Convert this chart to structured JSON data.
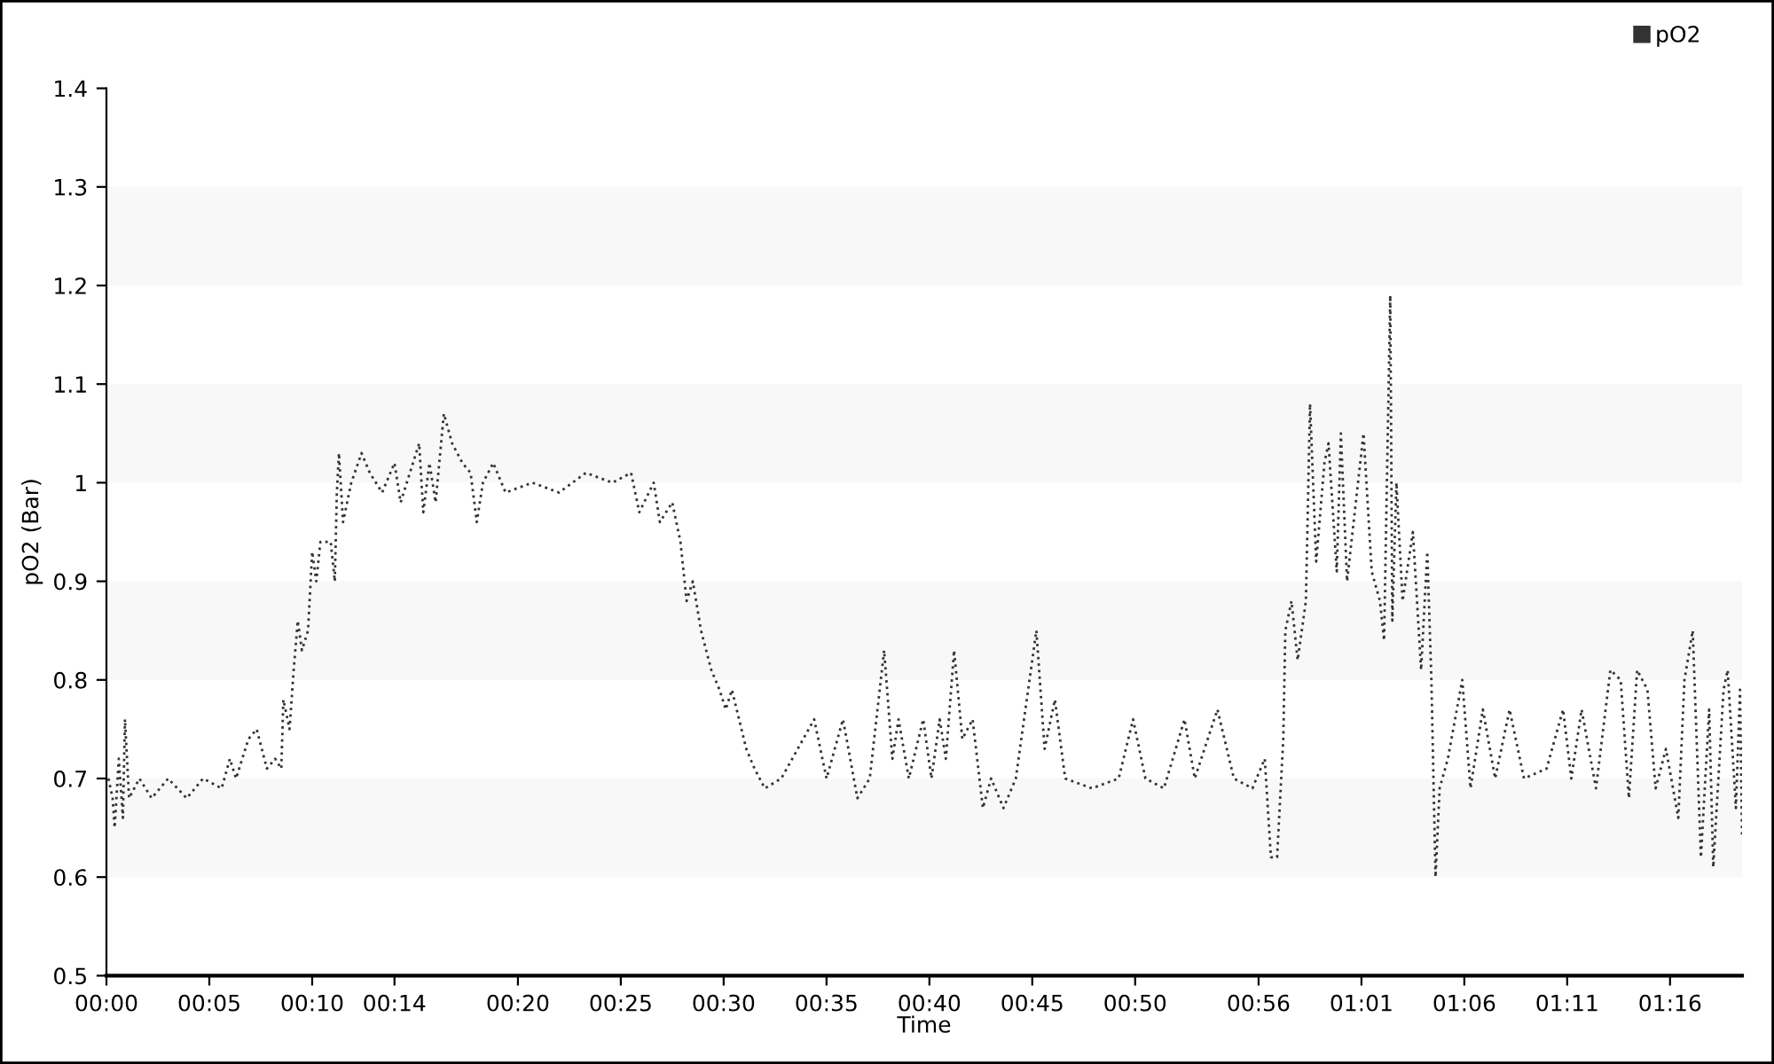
{
  "chart_data": {
    "type": "line",
    "xlabel": "Time",
    "ylabel": "pO2 (Bar)",
    "x": [
      0.1,
      0.3,
      0.4,
      0.6,
      0.8,
      0.9,
      1.1,
      1.6,
      2.2,
      3.0,
      3.9,
      4.7,
      5.6,
      6.0,
      6.3,
      6.9,
      7.3,
      7.8,
      8.2,
      8.5,
      8.6,
      8.9,
      9.1,
      9.3,
      9.5,
      9.8,
      10.0,
      10.2,
      10.4,
      10.9,
      11.1,
      11.2,
      11.3,
      11.5,
      11.9,
      12.4,
      12.8,
      13.4,
      14.0,
      14.3,
      15.2,
      15.4,
      15.7,
      16.0,
      16.4,
      16.8,
      17.3,
      17.7,
      18.0,
      18.3,
      18.8,
      19.4,
      20.7,
      22.0,
      23.3,
      24.6,
      25.5,
      25.9,
      26.6,
      26.9,
      27.5,
      27.9,
      28.2,
      28.5,
      28.9,
      29.4,
      29.8,
      30.1,
      30.4,
      31.1,
      31.5,
      32.0,
      32.8,
      34.4,
      35.0,
      35.8,
      36.5,
      37.1,
      37.8,
      38.2,
      38.5,
      39.0,
      39.7,
      40.1,
      40.5,
      40.8,
      41.2,
      41.6,
      42.1,
      42.6,
      43.0,
      43.6,
      44.2,
      45.2,
      45.6,
      46.1,
      46.6,
      47.9,
      49.2,
      49.9,
      50.5,
      51.4,
      52.4,
      52.9,
      54.0,
      54.8,
      55.7,
      56.3,
      56.6,
      56.9,
      57.2,
      57.3,
      57.6,
      57.9,
      58.3,
      58.5,
      58.8,
      59.2,
      59.4,
      59.8,
      60.0,
      60.3,
      61.1,
      61.5,
      61.9,
      62.1,
      62.4,
      62.5,
      62.7,
      63.0,
      63.5,
      63.9,
      64.2,
      64.4,
      64.6,
      64.8,
      65.2,
      65.9,
      66.3,
      66.9,
      67.5,
      68.2,
      68.9,
      70.0,
      70.8,
      71.2,
      71.7,
      72.4,
      73.1,
      73.6,
      74.0,
      74.4,
      74.9,
      75.3,
      75.8,
      76.4,
      76.7,
      77.1,
      77.5,
      77.9,
      78.1,
      78.6,
      78.8,
      79.2,
      79.4,
      79.5
    ],
    "series": [
      {
        "name": "pO2",
        "color": "#333333",
        "values": [
          0.7,
          0.68,
          0.65,
          0.72,
          0.66,
          0.76,
          0.68,
          0.7,
          0.68,
          0.7,
          0.68,
          0.7,
          0.69,
          0.72,
          0.7,
          0.74,
          0.75,
          0.71,
          0.72,
          0.71,
          0.78,
          0.75,
          0.81,
          0.86,
          0.83,
          0.85,
          0.93,
          0.9,
          0.94,
          0.94,
          0.9,
          0.99,
          1.03,
          0.96,
          1.0,
          1.03,
          1.01,
          0.99,
          1.02,
          0.98,
          1.04,
          0.97,
          1.02,
          0.98,
          1.07,
          1.04,
          1.02,
          1.01,
          0.96,
          1.0,
          1.02,
          0.99,
          1.0,
          0.99,
          1.01,
          1.0,
          1.01,
          0.97,
          1.0,
          0.96,
          0.98,
          0.94,
          0.88,
          0.9,
          0.85,
          0.81,
          0.79,
          0.77,
          0.79,
          0.73,
          0.71,
          0.69,
          0.7,
          0.76,
          0.7,
          0.76,
          0.68,
          0.7,
          0.83,
          0.72,
          0.76,
          0.7,
          0.76,
          0.7,
          0.76,
          0.72,
          0.83,
          0.74,
          0.76,
          0.67,
          0.7,
          0.67,
          0.7,
          0.85,
          0.73,
          0.78,
          0.7,
          0.69,
          0.7,
          0.76,
          0.7,
          0.69,
          0.76,
          0.7,
          0.77,
          0.7,
          0.69,
          0.72,
          0.62,
          0.62,
          0.74,
          0.85,
          0.88,
          0.82,
          0.88,
          1.08,
          0.92,
          1.02,
          1.04,
          0.91,
          1.05,
          0.9,
          1.05,
          0.91,
          0.88,
          0.84,
          1.19,
          0.86,
          1.0,
          0.88,
          0.95,
          0.81,
          0.93,
          0.8,
          0.6,
          0.69,
          0.72,
          0.8,
          0.69,
          0.77,
          0.7,
          0.77,
          0.7,
          0.71,
          0.77,
          0.7,
          0.77,
          0.69,
          0.81,
          0.8,
          0.68,
          0.81,
          0.79,
          0.69,
          0.73,
          0.66,
          0.8,
          0.85,
          0.62,
          0.77,
          0.61,
          0.79,
          0.81,
          0.67,
          0.79,
          0.64
        ]
      }
    ],
    "xlim": [
      0,
      79.5
    ],
    "xticks": [
      {
        "value": 0,
        "label": "00:00"
      },
      {
        "value": 5,
        "label": "00:05"
      },
      {
        "value": 10,
        "label": "00:10"
      },
      {
        "value": 14,
        "label": "00:14"
      },
      {
        "value": 20,
        "label": "00:20"
      },
      {
        "value": 25,
        "label": "00:25"
      },
      {
        "value": 30,
        "label": "00:30"
      },
      {
        "value": 35,
        "label": "00:35"
      },
      {
        "value": 40,
        "label": "00:40"
      },
      {
        "value": 45,
        "label": "00:45"
      },
      {
        "value": 50,
        "label": "00:50"
      },
      {
        "value": 56,
        "label": "00:56"
      },
      {
        "value": 61,
        "label": "01:01"
      },
      {
        "value": 66,
        "label": "01:06"
      },
      {
        "value": 71,
        "label": "01:11"
      },
      {
        "value": 76,
        "label": "01:16"
      }
    ],
    "ylim": [
      0.5,
      1.4
    ],
    "yticks": [
      0.5,
      0.6,
      0.7,
      0.8,
      0.9,
      {
        "value": 1,
        "label": "1"
      },
      1.1,
      1.2,
      1.3,
      1.4
    ],
    "bands": [
      {
        "axis": "y",
        "from": 0.6,
        "to": 0.7,
        "color": "#f8f8f8"
      },
      {
        "axis": "y",
        "from": 0.8,
        "to": 0.9,
        "color": "#f8f8f8"
      },
      {
        "axis": "y",
        "from": 1.0,
        "to": 1.1,
        "color": "#f8f8f8"
      },
      {
        "axis": "y",
        "from": 1.2,
        "to": 1.3,
        "color": "#f8f8f8"
      }
    ],
    "legend": "top right",
    "line_style": "dotted",
    "marker": "none",
    "grid": false
  }
}
